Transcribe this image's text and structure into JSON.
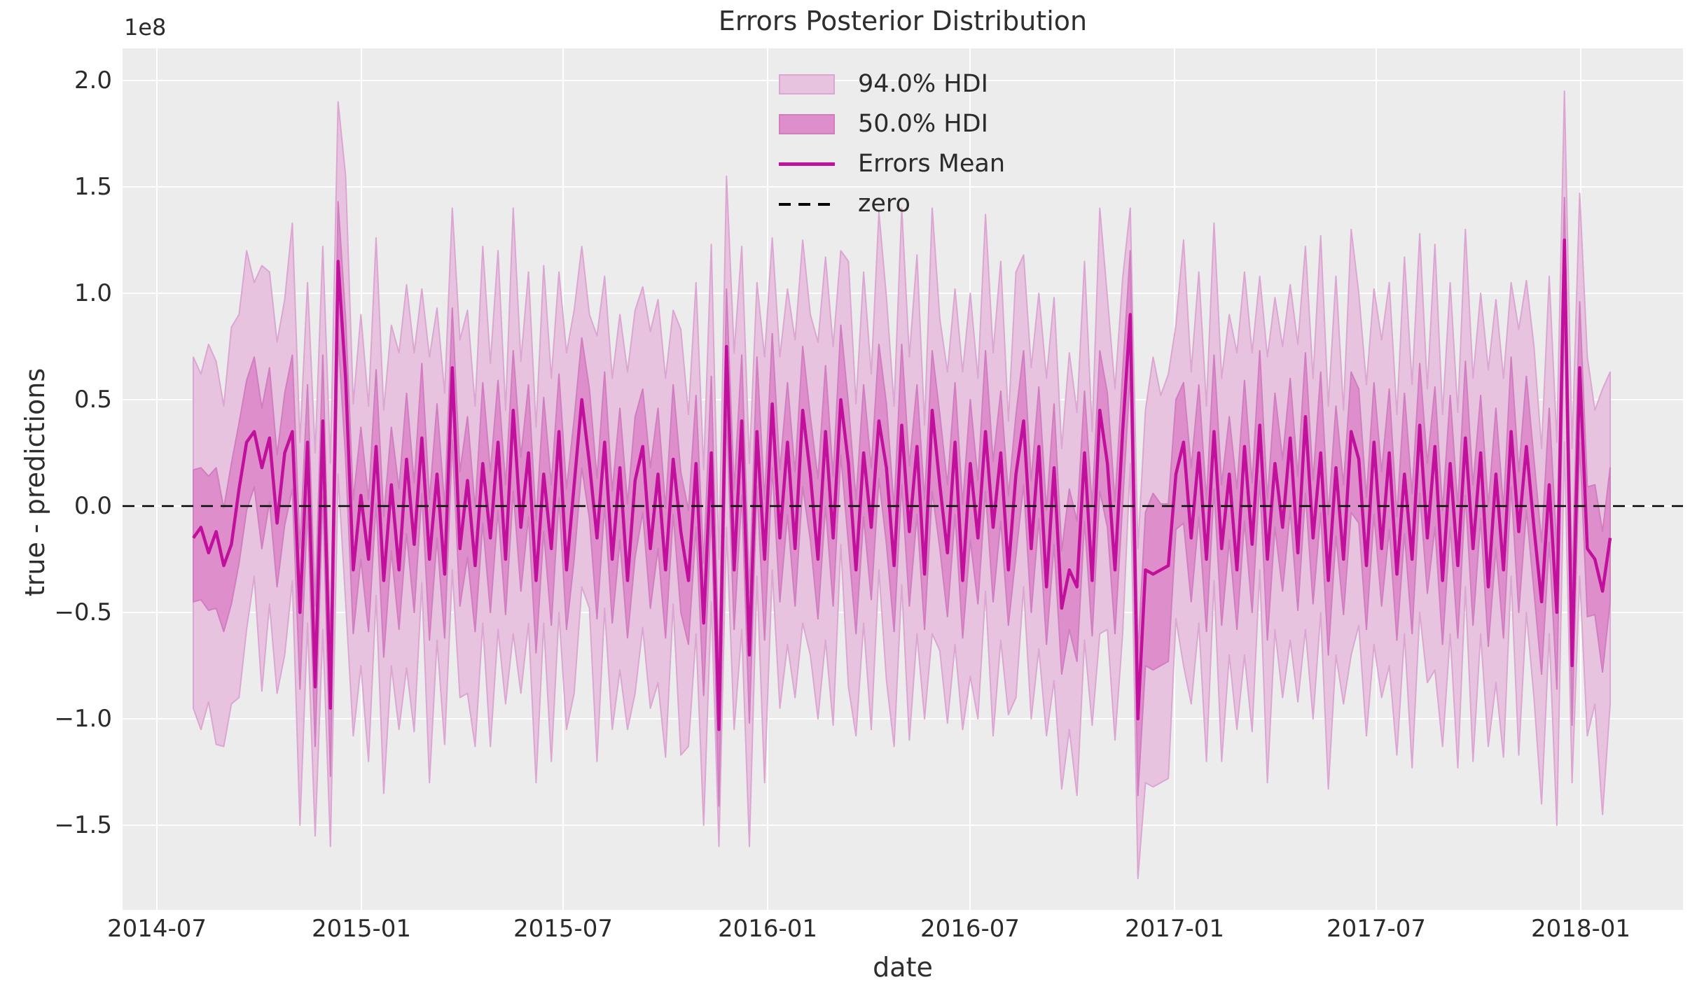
{
  "figure": {
    "title": "Errors Posterior Distribution",
    "xlabel": "date",
    "ylabel": "true - predictions",
    "y_offset_label": "1e8"
  },
  "axes": {
    "x_tick_labels": [
      "2014-07",
      "2015-01",
      "2015-07",
      "2016-01",
      "2016-07",
      "2017-01",
      "2017-07",
      "2018-01"
    ],
    "y_tick_labels": [
      "2.0",
      "1.5",
      "1.0",
      "0.5",
      "0.0",
      "−0.5",
      "−1.0",
      "−1.5"
    ]
  },
  "legend": {
    "items": [
      {
        "label": "94.0% HDI",
        "type": "patch",
        "fill": "#e8c3df",
        "edge": "#dba6d2"
      },
      {
        "label": "50.0% HDI",
        "type": "patch",
        "fill": "#dd8ecb",
        "edge": "#d07ec0"
      },
      {
        "label": "Errors Mean",
        "type": "line",
        "color": "#c0109c"
      },
      {
        "label": "zero",
        "type": "dashed-line",
        "color": "#000000"
      }
    ]
  },
  "colors": {
    "axes_background": "#ececec",
    "grid": "#ffffff",
    "hdi94_fill": "#e8c3df",
    "hdi94_edge": "#dba6d2",
    "hdi50_fill": "#dd8ecb",
    "hdi50_edge": "#d07ec0",
    "mean_line": "#c0109c",
    "zero_line": "#000000",
    "text": "#2b2b2b"
  },
  "chart_data": {
    "type": "line",
    "title": "Errors Posterior Distribution",
    "xlabel": "date",
    "ylabel": "true - predictions",
    "y_unit_scale": "1e8",
    "legend_position": "upper center-right inside axes",
    "grid": true,
    "x_start": "2014-08-03",
    "x_step_days": 7,
    "n_points": 187,
    "xlim": [
      "2014-06-01",
      "2018-04-03"
    ],
    "ylim_1e8": [
      -1.9,
      2.15
    ],
    "x_ticks": [
      "2014-07",
      "2015-01",
      "2015-07",
      "2016-01",
      "2016-07",
      "2017-01",
      "2017-07",
      "2018-01"
    ],
    "y_ticks_1e8": [
      2.0,
      1.5,
      1.0,
      0.5,
      0.0,
      -0.5,
      -1.0,
      -1.5
    ],
    "bands_definition": "hdi_lower[i] = mean[i] - lower_offset[i]; hdi_upper[i] = mean[i] + upper_offset[i]; all values in units of 1e8 (true - predictions)",
    "series": [
      {
        "name": "Errors Mean",
        "style": "solid line"
      },
      {
        "name": "50.0% HDI",
        "style": "inner band"
      },
      {
        "name": "94.0% HDI",
        "style": "outer band"
      },
      {
        "name": "zero",
        "style": "horizontal dashed line",
        "value": 0.0
      }
    ],
    "mean": [
      -0.15,
      -0.1,
      -0.22,
      -0.12,
      -0.28,
      -0.18,
      0.08,
      0.3,
      0.35,
      0.18,
      0.32,
      -0.08,
      0.25,
      0.35,
      -0.5,
      0.3,
      -0.85,
      0.4,
      -0.95,
      1.15,
      0.6,
      -0.3,
      0.05,
      -0.25,
      0.28,
      -0.35,
      0.1,
      -0.3,
      0.22,
      -0.18,
      0.32,
      -0.25,
      0.15,
      -0.32,
      0.65,
      -0.2,
      0.12,
      -0.28,
      0.2,
      -0.15,
      0.3,
      -0.25,
      0.45,
      -0.1,
      0.25,
      -0.35,
      0.15,
      -0.2,
      0.35,
      -0.3,
      0.1,
      0.5,
      0.2,
      -0.15,
      0.3,
      -0.25,
      0.18,
      -0.35,
      0.12,
      0.28,
      -0.2,
      0.15,
      -0.3,
      0.22,
      -0.12,
      -0.35,
      0.2,
      -0.55,
      0.25,
      -1.05,
      0.75,
      -0.3,
      0.4,
      -0.7,
      0.35,
      -0.25,
      0.48,
      -0.15,
      0.3,
      -0.2,
      0.45,
      0.15,
      -0.25,
      0.35,
      -0.15,
      0.5,
      0.2,
      -0.3,
      0.25,
      -0.1,
      0.4,
      0.18,
      -0.28,
      0.38,
      -0.12,
      0.28,
      -0.32,
      0.45,
      0.1,
      -0.22,
      0.3,
      -0.35,
      0.2,
      -0.15,
      0.35,
      -0.1,
      0.25,
      -0.3,
      0.15,
      0.4,
      -0.2,
      0.28,
      -0.38,
      0.18,
      -0.48,
      -0.3,
      -0.38,
      0.25,
      -0.35,
      0.45,
      0.2,
      -0.3,
      0.35,
      0.9,
      -1.0,
      -0.3,
      -0.32,
      -0.3,
      -0.28,
      0.15,
      0.3,
      -0.15,
      0.25,
      -0.25,
      0.35,
      -0.2,
      0.15,
      -0.3,
      0.28,
      -0.18,
      0.38,
      -0.25,
      0.2,
      -0.1,
      0.32,
      -0.22,
      0.42,
      -0.15,
      0.25,
      -0.35,
      0.18,
      -0.25,
      0.35,
      0.22,
      -0.28,
      0.3,
      -0.2,
      0.25,
      -0.32,
      0.15,
      -0.25,
      0.38,
      -0.15,
      0.28,
      -0.35,
      0.2,
      -0.28,
      0.32,
      -0.2,
      0.25,
      -0.38,
      0.15,
      -0.3,
      0.35,
      -0.12,
      0.28,
      -0.1,
      -0.45,
      0.1,
      -0.5,
      1.25,
      -0.75,
      0.65,
      -0.2,
      -0.25,
      -0.4,
      -0.15
    ],
    "hdi50_lower_offset": [
      0.3,
      0.34,
      0.27,
      0.36,
      0.31,
      0.28,
      0.35,
      0.32,
      0.26,
      0.38,
      0.3,
      0.3,
      0.34,
      0.27,
      0.36,
      0.31,
      0.28,
      0.35,
      0.32,
      0.35,
      0.38,
      0.3,
      0.3,
      0.34,
      0.27,
      0.36,
      0.31,
      0.28,
      0.35,
      0.32,
      0.26,
      0.38,
      0.3,
      0.3,
      0.34,
      0.27,
      0.36,
      0.31,
      0.28,
      0.35,
      0.32,
      0.26,
      0.38,
      0.3,
      0.3,
      0.34,
      0.27,
      0.36,
      0.31,
      0.28,
      0.35,
      0.32,
      0.26,
      0.38,
      0.3,
      0.3,
      0.34,
      0.27,
      0.36,
      0.31,
      0.28,
      0.35,
      0.32,
      0.26,
      0.38,
      0.3,
      0.3,
      0.34,
      0.27,
      0.36,
      0.31,
      0.28,
      0.35,
      0.32,
      0.26,
      0.38,
      0.3,
      0.3,
      0.34,
      0.27,
      0.36,
      0.31,
      0.28,
      0.35,
      0.32,
      0.26,
      0.38,
      0.3,
      0.3,
      0.34,
      0.27,
      0.36,
      0.31,
      0.28,
      0.35,
      0.32,
      0.26,
      0.38,
      0.3,
      0.3,
      0.34,
      0.27,
      0.36,
      0.31,
      0.28,
      0.35,
      0.32,
      0.26,
      0.38,
      0.3,
      0.3,
      0.34,
      0.27,
      0.36,
      0.31,
      0.28,
      0.35,
      0.32,
      0.26,
      0.38,
      0.3,
      0.3,
      0.34,
      0.27,
      0.36,
      0.45,
      0.45,
      0.45,
      0.45,
      0.26,
      0.38,
      0.3,
      0.3,
      0.34,
      0.27,
      0.36,
      0.31,
      0.28,
      0.35,
      0.32,
      0.26,
      0.38,
      0.3,
      0.3,
      0.34,
      0.27,
      0.36,
      0.31,
      0.28,
      0.35,
      0.32,
      0.26,
      0.38,
      0.3,
      0.3,
      0.34,
      0.27,
      0.36,
      0.31,
      0.28,
      0.35,
      0.32,
      0.26,
      0.38,
      0.3,
      0.3,
      0.34,
      0.27,
      0.36,
      0.31,
      0.28,
      0.35,
      0.32,
      0.26,
      0.38,
      0.3,
      0.3,
      0.34,
      0.27,
      0.36,
      0.31,
      0.28,
      0.35,
      0.32,
      0.26,
      0.38,
      0.3
    ],
    "hdi50_upper_offset": [
      0.32,
      0.28,
      0.36,
      0.3,
      0.27,
      0.38,
      0.31,
      0.29,
      0.35,
      0.28,
      0.33,
      0.32,
      0.28,
      0.36,
      0.3,
      0.27,
      0.38,
      0.31,
      0.29,
      0.28,
      0.28,
      0.33,
      0.32,
      0.28,
      0.36,
      0.3,
      0.27,
      0.38,
      0.31,
      0.29,
      0.35,
      0.28,
      0.33,
      0.32,
      0.28,
      0.36,
      0.3,
      0.27,
      0.38,
      0.31,
      0.29,
      0.35,
      0.28,
      0.33,
      0.32,
      0.28,
      0.36,
      0.3,
      0.27,
      0.38,
      0.31,
      0.29,
      0.35,
      0.28,
      0.33,
      0.32,
      0.28,
      0.36,
      0.3,
      0.27,
      0.38,
      0.31,
      0.29,
      0.35,
      0.28,
      0.33,
      0.32,
      0.28,
      0.36,
      0.3,
      0.27,
      0.38,
      0.31,
      0.29,
      0.35,
      0.28,
      0.33,
      0.32,
      0.28,
      0.36,
      0.3,
      0.27,
      0.38,
      0.31,
      0.29,
      0.35,
      0.28,
      0.33,
      0.32,
      0.28,
      0.36,
      0.3,
      0.27,
      0.38,
      0.31,
      0.29,
      0.35,
      0.28,
      0.33,
      0.32,
      0.28,
      0.36,
      0.3,
      0.27,
      0.38,
      0.31,
      0.29,
      0.35,
      0.28,
      0.33,
      0.32,
      0.28,
      0.36,
      0.3,
      0.27,
      0.38,
      0.31,
      0.29,
      0.35,
      0.28,
      0.33,
      0.32,
      0.28,
      0.3,
      0.3,
      0.27,
      0.38,
      0.31,
      0.29,
      0.35,
      0.28,
      0.33,
      0.32,
      0.28,
      0.36,
      0.3,
      0.27,
      0.38,
      0.31,
      0.29,
      0.35,
      0.28,
      0.33,
      0.32,
      0.28,
      0.36,
      0.3,
      0.27,
      0.38,
      0.31,
      0.29,
      0.35,
      0.28,
      0.33,
      0.32,
      0.28,
      0.36,
      0.3,
      0.27,
      0.38,
      0.31,
      0.29,
      0.35,
      0.28,
      0.33,
      0.32,
      0.28,
      0.36,
      0.3,
      0.27,
      0.38,
      0.31,
      0.29,
      0.35,
      0.28,
      0.33,
      0.32,
      0.28,
      0.36,
      0.3,
      0.2,
      0.38,
      0.31,
      0.29,
      0.35,
      0.28,
      0.33
    ],
    "hdi94_lower_offset": [
      0.8,
      0.95,
      0.7,
      1.0,
      0.85,
      0.75,
      0.98,
      0.88,
      0.68,
      1.05,
      0.78,
      0.8,
      0.95,
      0.7,
      1.0,
      0.85,
      0.7,
      0.98,
      0.65,
      1.0,
      1.05,
      0.78,
      0.8,
      0.95,
      0.7,
      1.0,
      0.85,
      0.75,
      0.98,
      0.88,
      0.68,
      1.05,
      0.78,
      0.8,
      0.95,
      0.7,
      1.0,
      0.85,
      0.75,
      0.98,
      0.88,
      0.68,
      1.05,
      0.78,
      0.8,
      0.95,
      0.7,
      1.0,
      0.85,
      0.75,
      0.98,
      0.88,
      0.68,
      1.05,
      0.78,
      0.8,
      0.95,
      0.7,
      1.0,
      0.85,
      0.75,
      0.98,
      0.88,
      0.68,
      1.05,
      0.78,
      0.8,
      0.95,
      0.7,
      0.55,
      0.85,
      0.75,
      0.98,
      0.9,
      0.68,
      1.05,
      0.78,
      0.8,
      0.95,
      0.7,
      1.0,
      0.85,
      0.75,
      0.98,
      0.88,
      0.68,
      1.05,
      0.78,
      0.8,
      0.95,
      0.7,
      1.0,
      0.85,
      0.75,
      0.98,
      0.88,
      0.68,
      1.05,
      0.78,
      0.8,
      0.95,
      0.7,
      1.0,
      0.85,
      0.75,
      0.98,
      0.88,
      0.68,
      1.05,
      0.78,
      0.8,
      0.95,
      0.7,
      1.0,
      0.85,
      0.75,
      0.98,
      0.88,
      0.68,
      1.05,
      0.78,
      0.8,
      0.95,
      0.7,
      0.75,
      1.0,
      1.0,
      1.0,
      1.0,
      0.68,
      1.05,
      0.78,
      0.8,
      0.95,
      0.7,
      1.0,
      0.85,
      0.75,
      0.98,
      0.88,
      0.68,
      1.05,
      0.78,
      0.8,
      0.95,
      0.7,
      1.0,
      0.85,
      0.75,
      0.98,
      0.88,
      0.68,
      1.05,
      0.78,
      0.8,
      0.95,
      0.7,
      1.0,
      0.85,
      0.75,
      0.98,
      0.88,
      0.68,
      1.05,
      0.78,
      0.8,
      0.95,
      0.7,
      1.0,
      0.85,
      0.75,
      0.98,
      0.88,
      0.68,
      1.05,
      0.78,
      0.8,
      0.95,
      0.7,
      1.0,
      0.95,
      0.55,
      0.98,
      0.88,
      0.68,
      1.05,
      0.78
    ],
    "hdi94_upper_offset": [
      0.85,
      0.72,
      0.98,
      0.8,
      0.75,
      1.02,
      0.82,
      0.9,
      0.7,
      0.95,
      0.78,
      0.85,
      0.72,
      0.98,
      0.8,
      0.75,
      1.1,
      0.82,
      1.15,
      0.75,
      0.95,
      0.78,
      0.85,
      0.72,
      0.98,
      0.8,
      0.75,
      1.02,
      0.82,
      0.9,
      0.7,
      0.95,
      0.78,
      0.85,
      0.75,
      0.98,
      0.8,
      0.75,
      1.02,
      0.82,
      0.9,
      0.7,
      0.95,
      0.78,
      0.85,
      0.72,
      0.98,
      0.8,
      0.75,
      1.02,
      0.82,
      0.72,
      0.7,
      0.95,
      0.78,
      0.85,
      0.72,
      0.98,
      0.8,
      0.75,
      1.02,
      0.82,
      0.9,
      0.7,
      0.95,
      0.78,
      0.85,
      0.72,
      0.98,
      0.8,
      0.8,
      1.02,
      0.82,
      0.9,
      0.7,
      0.95,
      0.78,
      0.85,
      0.72,
      0.98,
      0.8,
      0.75,
      1.02,
      0.82,
      0.9,
      0.7,
      0.95,
      0.78,
      0.85,
      0.72,
      0.98,
      0.8,
      0.75,
      1.02,
      0.82,
      0.9,
      0.7,
      0.95,
      0.78,
      0.85,
      0.72,
      0.98,
      0.8,
      0.75,
      1.02,
      0.82,
      0.9,
      0.7,
      0.95,
      0.78,
      0.85,
      0.72,
      0.98,
      0.8,
      0.75,
      1.02,
      0.82,
      0.9,
      0.7,
      0.95,
      0.78,
      0.85,
      0.72,
      0.5,
      0.8,
      0.75,
      1.02,
      0.82,
      0.9,
      0.7,
      0.95,
      0.78,
      0.85,
      0.72,
      0.98,
      0.8,
      0.75,
      1.02,
      0.82,
      0.9,
      0.7,
      0.95,
      0.78,
      0.85,
      0.72,
      0.98,
      0.8,
      0.75,
      1.02,
      0.82,
      0.9,
      0.7,
      0.95,
      0.78,
      0.85,
      0.72,
      0.98,
      0.8,
      0.75,
      1.02,
      0.82,
      0.9,
      0.7,
      0.95,
      0.78,
      0.85,
      0.72,
      0.98,
      0.8,
      0.75,
      1.02,
      0.82,
      0.9,
      0.7,
      0.95,
      0.78,
      0.85,
      0.72,
      0.98,
      0.8,
      0.7,
      1.02,
      0.82,
      0.9,
      0.7,
      0.95,
      0.78
    ]
  }
}
